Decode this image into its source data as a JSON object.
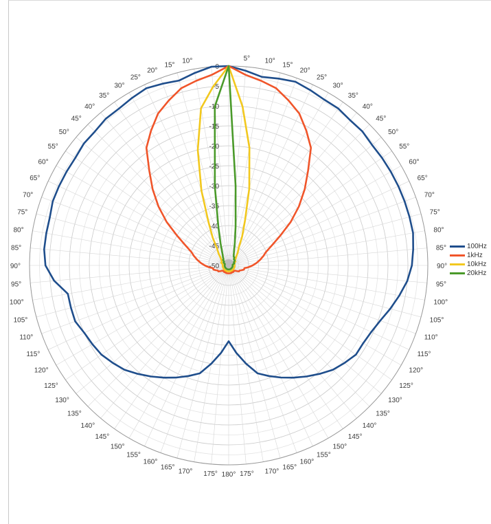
{
  "chart_data": {
    "type": "polar-line",
    "angle_labels": [
      "5°",
      "10°",
      "15°",
      "20°",
      "25°",
      "30°",
      "35°",
      "40°",
      "45°",
      "50°",
      "55°",
      "60°",
      "65°",
      "70°",
      "75°",
      "80°",
      "85°",
      "90°",
      "95°",
      "100°",
      "105°",
      "110°",
      "115°",
      "120°",
      "125°",
      "130°",
      "135°",
      "140°",
      "145°",
      "150°",
      "155°",
      "160°",
      "165°",
      "170°",
      "175°",
      "180°",
      "175°",
      "170°",
      "165°",
      "160°",
      "155°",
      "150°",
      "145°",
      "140°",
      "135°",
      "130°",
      "125°",
      "120°",
      "115°",
      "110°",
      "105°",
      "100°",
      "95°",
      "90°",
      "85°",
      "80°",
      "75°",
      "70°",
      "65°",
      "60°",
      "55°",
      "50°",
      "45°",
      "40°",
      "35°",
      "30°",
      "25°",
      "20°",
      "15°",
      "10°"
    ],
    "radial_ticks": [
      "0",
      "-5",
      "-10",
      "-15",
      "-20",
      "-25",
      "-30",
      "-35",
      "-40",
      "-45",
      "-50"
    ],
    "rlim": [
      -50,
      0
    ],
    "grid": true,
    "legend_position": "right",
    "series": [
      {
        "name": "100Hz",
        "color": "#1f4e8c",
        "angles": [
          0,
          5,
          10,
          15,
          20,
          25,
          30,
          35,
          40,
          45,
          50,
          55,
          60,
          65,
          70,
          75,
          80,
          85,
          90,
          95,
          100,
          105,
          110,
          115,
          120,
          125,
          130,
          135,
          140,
          145,
          150,
          155,
          160,
          165,
          170,
          175,
          180,
          185,
          190,
          195,
          200,
          205,
          210,
          215,
          220,
          225,
          230,
          235,
          240,
          245,
          250,
          255,
          260,
          265,
          270,
          275,
          280,
          285,
          290,
          295,
          300,
          305,
          310,
          315,
          320,
          325,
          330,
          335,
          340,
          345,
          350,
          355
        ],
        "values": [
          0,
          -1,
          -2,
          -1.5,
          -1,
          -1.5,
          -2,
          -2,
          -2.5,
          -2.5,
          -3,
          -3,
          -3,
          -3,
          -3,
          -3,
          -3,
          -3.5,
          -4,
          -5,
          -6.5,
          -8,
          -9.5,
          -10.5,
          -11,
          -11,
          -12,
          -13,
          -14.5,
          -16,
          -17.5,
          -19,
          -20.5,
          -22,
          -25,
          -28,
          -31,
          -28,
          -25,
          -22,
          -20.5,
          -19,
          -17.5,
          -16,
          -14.5,
          -13,
          -12,
          -11,
          -10.5,
          -10,
          -9,
          -9,
          -9,
          -6,
          -4,
          -3.5,
          -3.5,
          -3.5,
          -3,
          -3,
          -3,
          -3,
          -2.5,
          -2.5,
          -2,
          -2,
          -1.5,
          -1,
          -1.5,
          -2,
          -1,
          0
        ]
      },
      {
        "name": "1kHz",
        "color": "#f0552a",
        "angles": [
          0,
          5,
          10,
          15,
          20,
          25,
          30,
          35,
          40,
          45,
          50,
          55,
          60,
          65,
          70,
          75,
          80,
          85,
          90,
          95,
          100,
          105,
          110,
          115,
          120,
          125,
          130,
          135,
          140,
          145,
          150,
          155,
          160,
          165,
          170,
          175,
          180,
          185,
          190,
          195,
          200,
          205,
          210,
          215,
          220,
          225,
          230,
          235,
          240,
          245,
          250,
          255,
          260,
          265,
          270,
          275,
          280,
          285,
          290,
          295,
          300,
          305,
          310,
          315,
          320,
          325,
          330,
          335,
          340,
          345,
          350,
          355
        ],
        "values": [
          0,
          -2,
          -3,
          -4,
          -6,
          -8,
          -11,
          -14,
          -19,
          -23,
          -27,
          -31,
          -35,
          -38,
          -40,
          -41,
          -42,
          -43,
          -44,
          -45,
          -46,
          -46,
          -46.5,
          -47,
          -47,
          -47.5,
          -48,
          -48,
          -48.5,
          -48,
          -48,
          -48.5,
          -48,
          -48,
          -48,
          -48,
          -48,
          -48,
          -48,
          -48,
          -48,
          -48.5,
          -48,
          -48,
          -48.5,
          -48,
          -48,
          -47.5,
          -47,
          -47,
          -46.5,
          -46,
          -46,
          -45,
          -44,
          -43,
          -42,
          -41,
          -40,
          -38,
          -35,
          -31,
          -27,
          -23,
          -19,
          -14,
          -11,
          -8,
          -6,
          -4,
          -3,
          -2
        ]
      },
      {
        "name": "10kHz",
        "color": "#f2c81e",
        "angles": [
          0,
          5,
          10,
          15,
          20,
          25,
          30,
          35,
          40,
          45,
          50,
          60,
          70,
          80,
          90,
          100,
          110,
          120,
          130,
          140,
          150,
          160,
          170,
          180,
          190,
          200,
          210,
          220,
          230,
          240,
          250,
          260,
          270,
          280,
          290,
          300,
          310,
          315,
          320,
          325,
          330,
          335,
          340,
          345,
          350,
          355
        ],
        "values": [
          0,
          -10,
          -20,
          -30,
          -38,
          -42,
          -45,
          -46,
          -47,
          -47.5,
          -48,
          -48,
          -48.5,
          -48.5,
          -48.5,
          -48.5,
          -48.5,
          -48.5,
          -48.5,
          -48.5,
          -48.5,
          -48.5,
          -48.5,
          -48.5,
          -48.5,
          -48.5,
          -48.5,
          -48.5,
          -48.5,
          -48.5,
          -48.5,
          -48.5,
          -48.5,
          -48.5,
          -48,
          -48,
          -47.5,
          -47,
          -46,
          -45,
          -42,
          -38,
          -30,
          -20,
          -10,
          -5
        ]
      },
      {
        "name": "20kHz",
        "color": "#4a9a2a",
        "angles": [
          0,
          5,
          10,
          15,
          20,
          25,
          30,
          35,
          40,
          45,
          50,
          60,
          70,
          80,
          90,
          100,
          110,
          120,
          130,
          140,
          150,
          160,
          170,
          180,
          190,
          200,
          210,
          220,
          230,
          240,
          250,
          260,
          270,
          280,
          290,
          300,
          310,
          315,
          320,
          325,
          330,
          335,
          340,
          345,
          350,
          355
        ],
        "values": [
          0,
          -30,
          -40,
          -44,
          -46,
          -47,
          -47.5,
          -47.5,
          -48,
          -48,
          -48,
          -48.5,
          -48.5,
          -49,
          -49,
          -49,
          -49,
          -49,
          -49,
          -49,
          -49,
          -49,
          -49,
          -49,
          -49,
          -49,
          -49,
          -49,
          -49,
          -49,
          -49,
          -49,
          -49,
          -49,
          -49,
          -48.5,
          -48.5,
          -48,
          -48,
          -47.5,
          -47,
          -46,
          -44,
          -40,
          -30,
          -10
        ]
      }
    ]
  }
}
